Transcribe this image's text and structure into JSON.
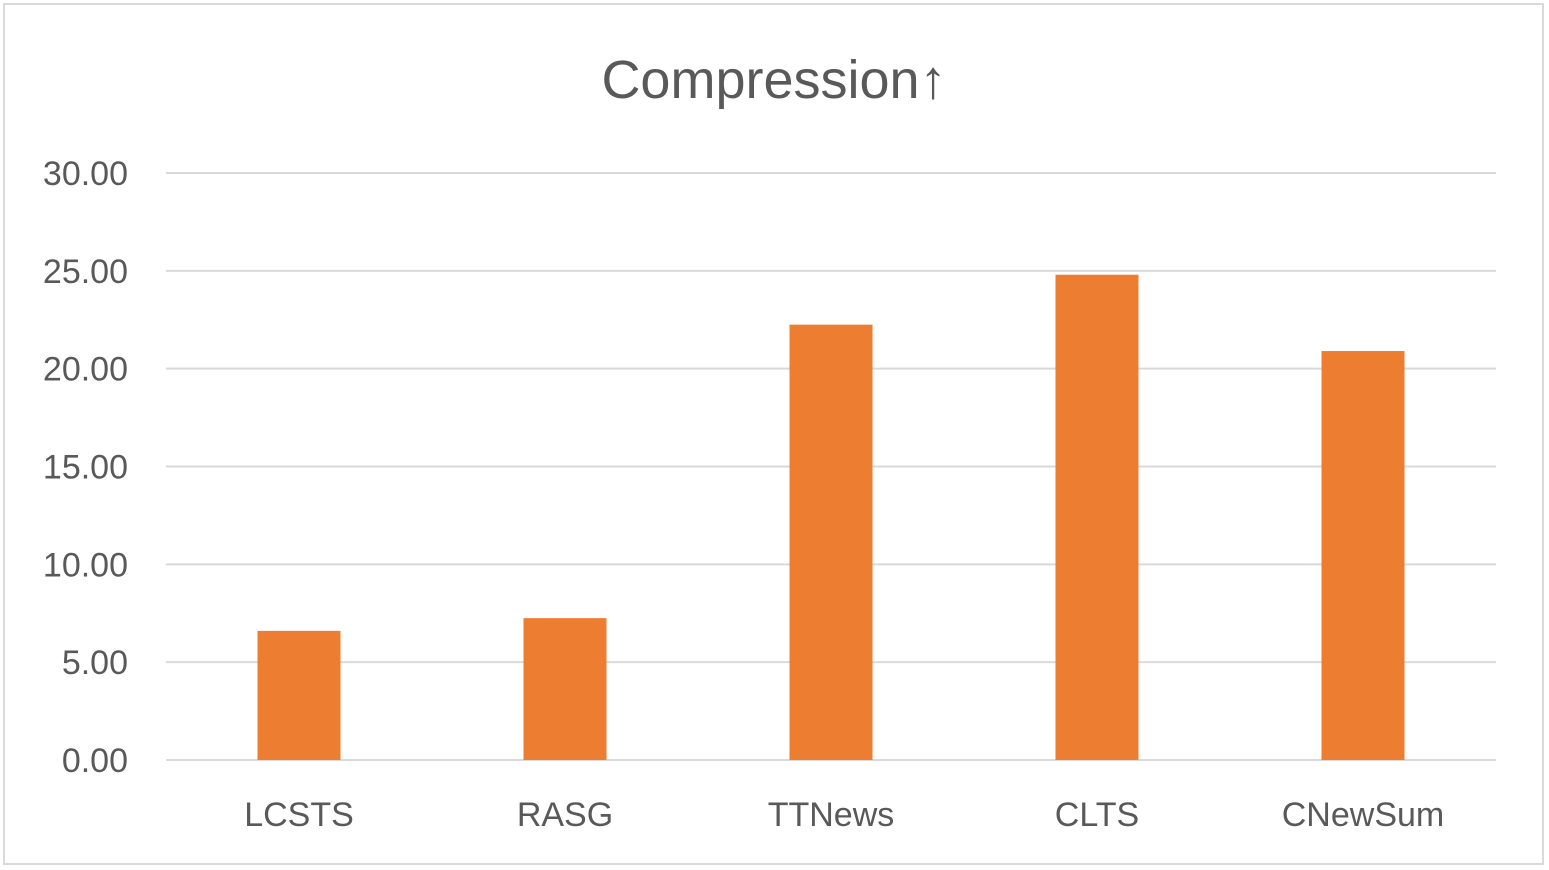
{
  "chart_data": {
    "type": "bar",
    "title": "Compression↑",
    "xlabel": "",
    "ylabel": "",
    "categories": [
      "LCSTS",
      "RASG",
      "TTNews",
      "CLTS",
      "CNewSum"
    ],
    "values": [
      6.6,
      7.25,
      22.25,
      24.8,
      20.9
    ],
    "ylim": [
      0,
      30
    ],
    "yticks": [
      "0.00",
      "5.00",
      "10.00",
      "15.00",
      "20.00",
      "25.00",
      "30.00"
    ],
    "ytick_values": [
      0,
      5,
      10,
      15,
      20,
      25,
      30
    ],
    "grid": true,
    "legend": "none",
    "colors": {
      "bar": "#ed7d31",
      "grid": "#d9d9d9",
      "text": "#595959",
      "frame": "#d9d9d9"
    }
  }
}
